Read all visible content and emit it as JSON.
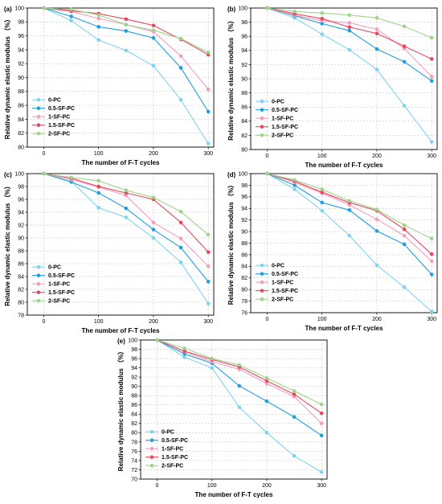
{
  "chart_data": [
    {
      "type": "line",
      "panel_label": "(a)",
      "xlabel": "The number of F-T cycles",
      "ylabel": "Relative dynamic elastic modulus （%）",
      "x": [
        0,
        50,
        100,
        150,
        200,
        250,
        300
      ],
      "x_ticks": [
        0,
        100,
        200,
        300
      ],
      "xlim": [
        -30,
        310
      ],
      "ylim": [
        80,
        100
      ],
      "y_ticks": [
        80,
        82,
        84,
        86,
        88,
        90,
        92,
        94,
        96,
        98,
        100
      ],
      "grid": true,
      "legend_position": "lower-left",
      "series": [
        {
          "name": "0-PC",
          "color": "#7fd3f0",
          "values": [
            100,
            98.2,
            95.4,
            93.9,
            91.7,
            86.8,
            80.5
          ]
        },
        {
          "name": "0.5-SF-PC",
          "color": "#1f9ee0",
          "values": [
            100,
            98.8,
            97.3,
            96.7,
            95.7,
            91.4,
            85.1
          ]
        },
        {
          "name": "1-SF-PC",
          "color": "#f59cc0",
          "values": [
            100,
            99.5,
            98.5,
            97.6,
            96.6,
            93.1,
            88.3
          ]
        },
        {
          "name": "1.5-SF-PC",
          "color": "#e8475d",
          "values": [
            100,
            99.6,
            99.2,
            98.4,
            97.5,
            95.5,
            93.3
          ]
        },
        {
          "name": "2-SF-PC",
          "color": "#9ed48a",
          "values": [
            100,
            99.8,
            99.0,
            97.6,
            96.8,
            95.6,
            93.6
          ]
        }
      ]
    },
    {
      "type": "line",
      "panel_label": "(b)",
      "xlabel": "The number of F-T cycles",
      "ylabel": "Relative dynamic elastic modulus （%）",
      "x": [
        0,
        50,
        100,
        150,
        200,
        250,
        300
      ],
      "x_ticks": [
        0,
        100,
        200,
        300
      ],
      "xlim": [
        -30,
        310
      ],
      "ylim": [
        80,
        100
      ],
      "y_ticks": [
        80,
        82,
        84,
        86,
        88,
        90,
        92,
        94,
        96,
        98,
        100
      ],
      "grid": true,
      "legend_position": "lower-left",
      "series": [
        {
          "name": "0-PC",
          "color": "#7fd3f0",
          "values": [
            100,
            98.6,
            96.3,
            94.1,
            91.3,
            86.2,
            81.1
          ]
        },
        {
          "name": "0.5-SF-PC",
          "color": "#1f9ee0",
          "values": [
            100,
            98.9,
            97.8,
            96.8,
            94.2,
            92.4,
            89.7
          ]
        },
        {
          "name": "1-SF-PC",
          "color": "#f59cc0",
          "values": [
            100,
            99.0,
            98.2,
            97.9,
            97.0,
            94.3,
            90.3
          ]
        },
        {
          "name": "1.5-SF-PC",
          "color": "#e8475d",
          "values": [
            100,
            99.2,
            98.5,
            97.3,
            96.4,
            94.6,
            92.8
          ]
        },
        {
          "name": "2-SF-PC",
          "color": "#9ed48a",
          "values": [
            100,
            99.5,
            99.3,
            99.0,
            98.6,
            97.4,
            95.8
          ]
        }
      ]
    },
    {
      "type": "line",
      "panel_label": "(c)",
      "xlabel": "The number of F-T cycles",
      "ylabel": "Relative dynamic elastic modulus （%）",
      "x": [
        0,
        50,
        100,
        150,
        200,
        250,
        300
      ],
      "x_ticks": [
        0,
        100,
        200,
        300
      ],
      "xlim": [
        -30,
        310
      ],
      "ylim": [
        78,
        100
      ],
      "y_ticks": [
        78,
        80,
        82,
        84,
        86,
        88,
        90,
        92,
        94,
        96,
        98,
        100
      ],
      "grid": true,
      "legend_position": "lower-left",
      "series": [
        {
          "name": "0-PC",
          "color": "#7fd3f0",
          "values": [
            100,
            98.8,
            94.7,
            93.2,
            90.0,
            86.2,
            79.8
          ]
        },
        {
          "name": "0.5-SF-PC",
          "color": "#1f9ee0",
          "values": [
            100,
            98.7,
            97.0,
            94.6,
            91.3,
            88.5,
            83.2
          ]
        },
        {
          "name": "1-SF-PC",
          "color": "#f59cc0",
          "values": [
            100,
            99.1,
            97.9,
            96.6,
            92.4,
            89.9,
            85.6
          ]
        },
        {
          "name": "1.5-SF-PC",
          "color": "#e8475d",
          "values": [
            100,
            99.3,
            98.0,
            97.0,
            96.0,
            92.4,
            87.8
          ]
        },
        {
          "name": "2-SF-PC",
          "color": "#9ed48a",
          "values": [
            100,
            99.4,
            98.9,
            97.4,
            96.3,
            94.1,
            90.5
          ]
        }
      ]
    },
    {
      "type": "line",
      "panel_label": "(d)",
      "xlabel": "The number of F-T cycles",
      "ylabel": "Relative dynamic elastic modulus （%）",
      "x": [
        0,
        50,
        100,
        150,
        200,
        250,
        300
      ],
      "x_ticks": [
        0,
        100,
        200,
        300
      ],
      "xlim": [
        -30,
        310
      ],
      "ylim": [
        76,
        100
      ],
      "y_ticks": [
        76,
        78,
        80,
        82,
        84,
        86,
        88,
        90,
        92,
        94,
        96,
        98,
        100
      ],
      "grid": true,
      "legend_position": "lower-left",
      "series": [
        {
          "name": "0-PC",
          "color": "#7fd3f0",
          "values": [
            100,
            97.3,
            93.6,
            89.3,
            84.2,
            80.4,
            76.2
          ]
        },
        {
          "name": "0.5-SF-PC",
          "color": "#1f9ee0",
          "values": [
            100,
            98.0,
            95.0,
            93.7,
            90.1,
            87.8,
            82.6
          ]
        },
        {
          "name": "1-SF-PC",
          "color": "#f59cc0",
          "values": [
            100,
            98.5,
            96.6,
            94.6,
            92.1,
            89.3,
            84.9
          ]
        },
        {
          "name": "1.5-SF-PC",
          "color": "#e8475d",
          "values": [
            100,
            98.7,
            96.8,
            95.0,
            93.6,
            90.4,
            86.1
          ]
        },
        {
          "name": "2-SF-PC",
          "color": "#9ed48a",
          "values": [
            100,
            98.9,
            97.3,
            95.3,
            93.8,
            91.1,
            88.8
          ]
        }
      ]
    },
    {
      "type": "line",
      "panel_label": "(e)",
      "xlabel": "The number of F-T cycles",
      "ylabel": "Relative dynamic elastic modulus （%）",
      "x": [
        0,
        50,
        100,
        150,
        200,
        250,
        300
      ],
      "x_ticks": [
        0,
        100,
        200,
        300
      ],
      "xlim": [
        -30,
        310
      ],
      "ylim": [
        70,
        100
      ],
      "y_ticks": [
        70,
        72,
        74,
        76,
        78,
        80,
        82,
        84,
        86,
        88,
        90,
        92,
        94,
        96,
        98,
        100
      ],
      "grid": true,
      "legend_position": "lower-left",
      "series": [
        {
          "name": "0-PC",
          "color": "#7fd3f0",
          "values": [
            100,
            96.3,
            94.0,
            85.5,
            80.0,
            75.0,
            71.5
          ]
        },
        {
          "name": "0.5-SF-PC",
          "color": "#1f9ee0",
          "values": [
            100,
            97.0,
            95.0,
            90.1,
            86.8,
            83.4,
            79.4
          ]
        },
        {
          "name": "1-SF-PC",
          "color": "#f59cc0",
          "values": [
            100,
            97.5,
            95.3,
            93.7,
            90.6,
            87.8,
            82.0
          ]
        },
        {
          "name": "1.5-SF-PC",
          "color": "#e8475d",
          "values": [
            100,
            97.6,
            95.8,
            94.2,
            91.2,
            88.3,
            84.2
          ]
        },
        {
          "name": "2-SF-PC",
          "color": "#9ed48a",
          "values": [
            100,
            98.2,
            96.0,
            94.6,
            91.8,
            89.0,
            86.1
          ]
        }
      ]
    }
  ]
}
